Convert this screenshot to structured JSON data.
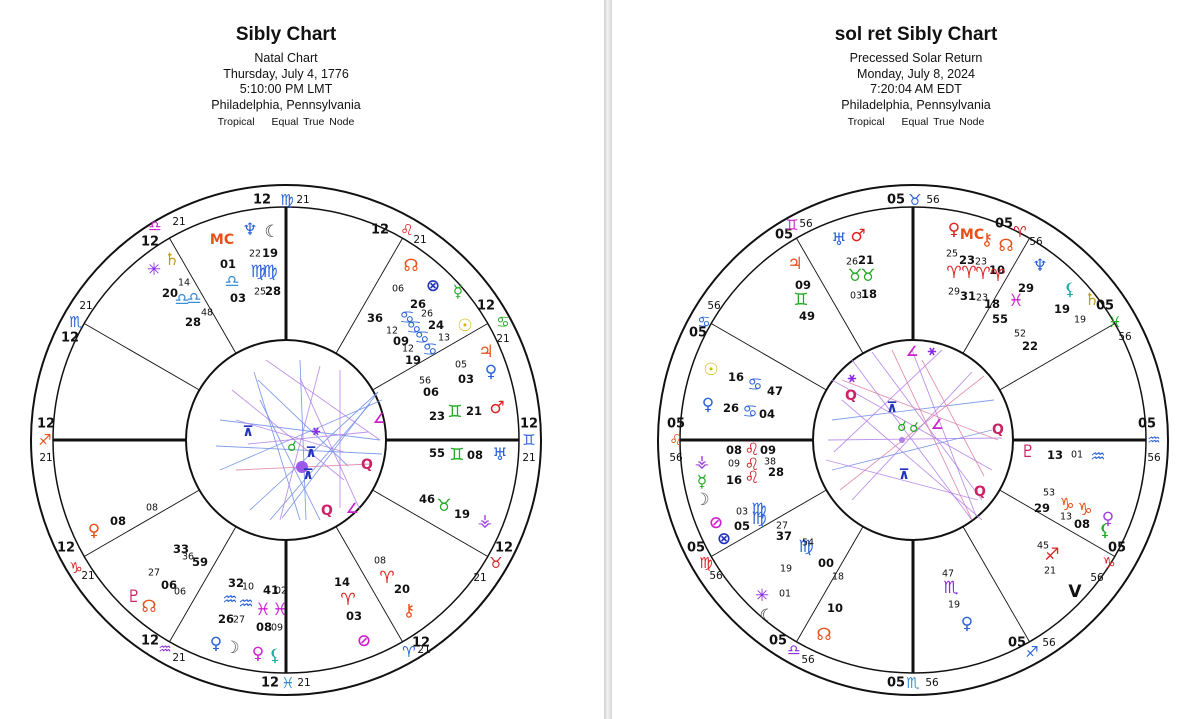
{
  "charts": [
    {
      "title": "Sibly Chart",
      "chart_type": "Natal Chart",
      "date": "Thursday, July 4, 1776",
      "time": "5:10:00 PM LMT",
      "location": "Philadelphia, Pennsylvania",
      "zodiac": "Tropical",
      "house_system": "Equal True Node",
      "cusp_labels": [
        {
          "deg": "12",
          "sign": "♍",
          "min": "21"
        },
        {
          "deg": "12",
          "sign": "♌",
          "min": "21"
        },
        {
          "deg": "12",
          "sign": "♋",
          "min": "21"
        },
        {
          "deg": "12",
          "sign": "♊",
          "min": "21"
        },
        {
          "deg": "12",
          "sign": "♉",
          "min": "21"
        },
        {
          "deg": "12",
          "sign": "♈",
          "min": "21"
        },
        {
          "deg": "12",
          "sign": "♓",
          "min": "21"
        },
        {
          "deg": "12",
          "sign": "♒",
          "min": "21"
        },
        {
          "deg": "12",
          "sign": "♑",
          "min": "21"
        },
        {
          "deg": "12",
          "sign": "♐",
          "min": "21"
        },
        {
          "deg": "12",
          "sign": "♏",
          "min": "21"
        },
        {
          "deg": "12",
          "sign": "♎",
          "min": "21"
        }
      ],
      "markings": [
        {
          "t": "MC",
          "c": "#e8501a"
        },
        {
          "t": "♆",
          "c": "#2a63d8"
        },
        {
          "t": "☾",
          "c": "#3a3a3a"
        },
        {
          "t": "01"
        },
        {
          "t": "22"
        },
        {
          "t": "19"
        },
        {
          "t": "♎",
          "c": "#3b8fd9"
        },
        {
          "t": "♍",
          "c": "#2a63d8"
        },
        {
          "t": "♍",
          "c": "#2a63d8"
        },
        {
          "t": "03"
        },
        {
          "t": "25"
        },
        {
          "t": "28"
        },
        {
          "t": "✳",
          "c": "#8a2be2"
        },
        {
          "t": "♄",
          "c": "#b8a020"
        },
        {
          "t": "14"
        },
        {
          "t": "20"
        },
        {
          "t": "♎",
          "c": "#3b8fd9"
        },
        {
          "t": "♎",
          "c": "#3b8fd9"
        },
        {
          "t": "48"
        },
        {
          "t": "28"
        },
        {
          "t": "☊",
          "c": "#e8501a"
        },
        {
          "t": "⊗",
          "c": "#2233bb"
        },
        {
          "t": "☿",
          "c": "#22aa22"
        },
        {
          "t": "☉",
          "c": "#d4b800"
        },
        {
          "t": "06"
        },
        {
          "t": "26"
        },
        {
          "t": "26"
        },
        {
          "t": "24"
        },
        {
          "t": "13"
        },
        {
          "t": "36"
        },
        {
          "t": "12"
        },
        {
          "t": "09"
        },
        {
          "t": "12"
        },
        {
          "t": "19"
        },
        {
          "t": "♋",
          "c": "#2a63d8"
        },
        {
          "t": "♋",
          "c": "#2a63d8"
        },
        {
          "t": "♋",
          "c": "#2a63d8"
        },
        {
          "t": "♋",
          "c": "#2a63d8"
        },
        {
          "t": "♃",
          "c": "#e8501a"
        },
        {
          "t": "♀",
          "c": "#2a63d8"
        },
        {
          "t": "05"
        },
        {
          "t": "03"
        },
        {
          "t": "56"
        },
        {
          "t": "06"
        },
        {
          "t": "♂",
          "c": "#dd2222"
        },
        {
          "t": "21"
        },
        {
          "t": "♊",
          "c": "#22aa22"
        },
        {
          "t": "23"
        },
        {
          "t": "♅",
          "c": "#2a63d8"
        },
        {
          "t": "08"
        },
        {
          "t": "♊",
          "c": "#22aa22"
        },
        {
          "t": "55"
        },
        {
          "t": "⚶",
          "c": "#a040e0"
        },
        {
          "t": "19"
        },
        {
          "t": "♉",
          "c": "#22aa22"
        },
        {
          "t": "46"
        },
        {
          "t": "♈",
          "c": "#dd2222"
        },
        {
          "t": "20"
        },
        {
          "t": "08"
        },
        {
          "t": "14"
        },
        {
          "t": "♈",
          "c": "#dd2222"
        },
        {
          "t": "03"
        },
        {
          "t": "⚷",
          "c": "#e8501a"
        },
        {
          "t": "⊘",
          "c": "#cc22cc"
        },
        {
          "t": "♀",
          "c": "#e8501a"
        },
        {
          "t": "08"
        },
        {
          "t": "08"
        },
        {
          "t": "33"
        },
        {
          "t": "36"
        },
        {
          "t": "59"
        },
        {
          "t": "27"
        },
        {
          "t": "06"
        },
        {
          "t": "06"
        },
        {
          "t": "♇",
          "c": "#cc2266"
        },
        {
          "t": "☊",
          "c": "#e8501a"
        },
        {
          "t": "32"
        },
        {
          "t": "10"
        },
        {
          "t": "41"
        },
        {
          "t": "02"
        },
        {
          "t": "26"
        },
        {
          "t": "27"
        },
        {
          "t": "08"
        },
        {
          "t": "09"
        },
        {
          "t": "♀",
          "c": "#2a63d8"
        },
        {
          "t": "☽",
          "c": "#555555"
        },
        {
          "t": "♀",
          "c": "#cc22cc"
        },
        {
          "t": "⚸",
          "c": "#22aaaa"
        },
        {
          "t": "♓",
          "c": "#cc22cc"
        },
        {
          "t": "♓",
          "c": "#cc22cc"
        },
        {
          "t": "♒",
          "c": "#2a63d8"
        },
        {
          "t": "♒",
          "c": "#2a63d8"
        }
      ],
      "aspect_glyphs": [
        {
          "t": "☌",
          "c": "#22aa22"
        },
        {
          "t": "⚹",
          "c": "#8a2be2"
        },
        {
          "t": "Q",
          "c": "#cc2266"
        },
        {
          "t": "Q",
          "c": "#cc2266"
        },
        {
          "t": "∠",
          "c": "#cc22cc"
        },
        {
          "t": "∠",
          "c": "#cc22cc"
        },
        {
          "t": "⊼",
          "c": "#2233bb"
        },
        {
          "t": "⊼",
          "c": "#2233bb"
        },
        {
          "t": "⊼",
          "c": "#2233bb"
        }
      ],
      "colors": {
        "aspect_blue": "#6f8fe8",
        "aspect_purple": "#b27fe8",
        "aspect_red": "#e07f9f"
      }
    },
    {
      "title": "sol ret Sibly Chart",
      "chart_type": "Precessed Solar Return",
      "date": "Monday, July 8, 2024",
      "time": "7:20:04 AM EDT",
      "location": "Philadelphia, Pennsylvania",
      "zodiac": "Tropical",
      "house_system": "Equal True Node",
      "cusp_labels": [
        {
          "deg": "05",
          "sign": "♉",
          "min": "56"
        },
        {
          "deg": "05",
          "sign": "♈",
          "min": "56"
        },
        {
          "deg": "05",
          "sign": "♓",
          "min": "56"
        },
        {
          "deg": "05",
          "sign": "♒",
          "min": "56"
        },
        {
          "deg": "05",
          "sign": "♑",
          "min": "56"
        },
        {
          "deg": "05",
          "sign": "♐",
          "min": "56"
        },
        {
          "deg": "05",
          "sign": "♏",
          "min": "56"
        },
        {
          "deg": "05",
          "sign": "♎",
          "min": "56"
        },
        {
          "deg": "05",
          "sign": "♍",
          "min": "56"
        },
        {
          "deg": "05",
          "sign": "♌",
          "min": "56"
        },
        {
          "deg": "05",
          "sign": "♋",
          "min": "56"
        },
        {
          "deg": "05",
          "sign": "♊",
          "min": "56"
        }
      ],
      "markings": [
        {
          "t": "♅",
          "c": "#2a63d8"
        },
        {
          "t": "♂",
          "c": "#dd2222"
        },
        {
          "t": "26"
        },
        {
          "t": "21"
        },
        {
          "t": "♉",
          "c": "#22aa22"
        },
        {
          "t": "♉",
          "c": "#22aa22"
        },
        {
          "t": "03"
        },
        {
          "t": "18"
        },
        {
          "t": "♃",
          "c": "#e8501a"
        },
        {
          "t": "09"
        },
        {
          "t": "♊",
          "c": "#22aa22"
        },
        {
          "t": "49"
        },
        {
          "t": "♀",
          "c": "#dd2222"
        },
        {
          "t": "MC",
          "c": "#e8501a"
        },
        {
          "t": "⚷",
          "c": "#e8501a"
        },
        {
          "t": "☊",
          "c": "#e8501a"
        },
        {
          "t": "25"
        },
        {
          "t": "23"
        },
        {
          "t": "23"
        },
        {
          "t": "10"
        },
        {
          "t": "♈",
          "c": "#dd2222"
        },
        {
          "t": "♈",
          "c": "#dd2222"
        },
        {
          "t": "♈",
          "c": "#dd2222"
        },
        {
          "t": "♈",
          "c": "#dd2222"
        },
        {
          "t": "29"
        },
        {
          "t": "31"
        },
        {
          "t": "23"
        },
        {
          "t": "18"
        },
        {
          "t": "♆",
          "c": "#2a63d8"
        },
        {
          "t": "⚸",
          "c": "#22aaaa"
        },
        {
          "t": "♄",
          "c": "#b8a020"
        },
        {
          "t": "29"
        },
        {
          "t": "♓",
          "c": "#cc22cc"
        },
        {
          "t": "19"
        },
        {
          "t": "19"
        },
        {
          "t": "55"
        },
        {
          "t": "52"
        },
        {
          "t": "22"
        },
        {
          "t": "☉",
          "c": "#d4b800"
        },
        {
          "t": "16"
        },
        {
          "t": "♋",
          "c": "#2a63d8"
        },
        {
          "t": "47"
        },
        {
          "t": "♀",
          "c": "#2a63d8"
        },
        {
          "t": "26"
        },
        {
          "t": "♋",
          "c": "#2a63d8"
        },
        {
          "t": "04"
        },
        {
          "t": "⚶",
          "c": "#a040e0"
        },
        {
          "t": "☿",
          "c": "#22aa22"
        },
        {
          "t": "☽",
          "c": "#555555"
        },
        {
          "t": "08"
        },
        {
          "t": "09"
        },
        {
          "t": "16"
        },
        {
          "t": "♌",
          "c": "#cc2222"
        },
        {
          "t": "♌",
          "c": "#cc2222"
        },
        {
          "t": "♌",
          "c": "#cc2222"
        },
        {
          "t": "09"
        },
        {
          "t": "38"
        },
        {
          "t": "28"
        },
        {
          "t": "⊘",
          "c": "#cc22cc"
        },
        {
          "t": "⊗",
          "c": "#2233bb"
        },
        {
          "t": "03"
        },
        {
          "t": "05"
        },
        {
          "t": "♍",
          "c": "#2a63d8"
        },
        {
          "t": "♍",
          "c": "#2a63d8"
        },
        {
          "t": "27"
        },
        {
          "t": "37"
        },
        {
          "t": "19"
        },
        {
          "t": "♍",
          "c": "#2a63d8"
        },
        {
          "t": "54"
        },
        {
          "t": "✳",
          "c": "#8a2be2"
        },
        {
          "t": "01"
        },
        {
          "t": "00"
        },
        {
          "t": "18"
        },
        {
          "t": "10"
        },
        {
          "t": "☾",
          "c": "#3a3a3a"
        },
        {
          "t": "☊",
          "c": "#e8501a"
        },
        {
          "t": "47"
        },
        {
          "t": "♏",
          "c": "#8a2be2"
        },
        {
          "t": "19"
        },
        {
          "t": "♀",
          "c": "#2a63d8"
        },
        {
          "t": "45"
        },
        {
          "t": "♐",
          "c": "#dd2222"
        },
        {
          "t": "21"
        },
        {
          "t": "V",
          "c": "#111111"
        },
        {
          "t": "♇",
          "c": "#cc2266"
        },
        {
          "t": "13"
        },
        {
          "t": "01"
        },
        {
          "t": "♒",
          "c": "#2a63d8"
        },
        {
          "t": "53"
        },
        {
          "t": "29"
        },
        {
          "t": "13"
        },
        {
          "t": "08"
        },
        {
          "t": "♀",
          "c": "#a040e0"
        },
        {
          "t": "⚸",
          "c": "#22aa22"
        },
        {
          "t": "♑",
          "c": "#e8501a"
        },
        {
          "t": "♑",
          "c": "#e8501a"
        }
      ],
      "aspect_glyphs": [
        {
          "t": "☌",
          "c": "#22aa22"
        },
        {
          "t": "☌",
          "c": "#22aa22"
        },
        {
          "t": "⚹",
          "c": "#8a2be2"
        },
        {
          "t": "⚹",
          "c": "#8a2be2"
        },
        {
          "t": "Q",
          "c": "#cc2266"
        },
        {
          "t": "Q",
          "c": "#cc2266"
        },
        {
          "t": "Q",
          "c": "#cc2266"
        },
        {
          "t": "∠",
          "c": "#cc22cc"
        },
        {
          "t": "∠",
          "c": "#cc22cc"
        },
        {
          "t": "⊼",
          "c": "#2233bb"
        },
        {
          "t": "⊼",
          "c": "#2233bb"
        }
      ],
      "colors": {
        "aspect_blue": "#6f8fe8",
        "aspect_purple": "#b27fe8",
        "aspect_red": "#e07f9f"
      }
    }
  ]
}
